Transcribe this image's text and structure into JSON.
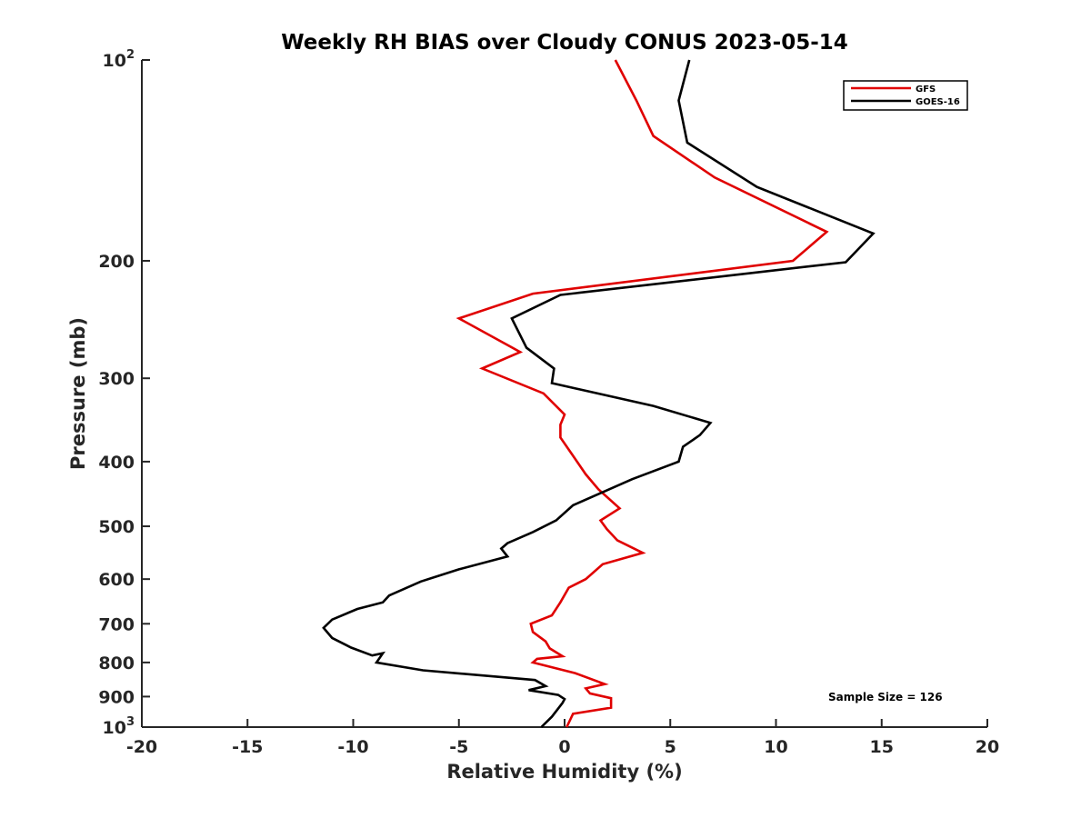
{
  "chart_data": {
    "type": "line",
    "title": "Weekly RH BIAS over Cloudy CONUS 2023-05-14",
    "xlabel": "Relative Humidity (%)",
    "ylabel": "Pressure (mb)",
    "xlim": [
      -20,
      20
    ],
    "ylim": [
      100,
      1000
    ],
    "y_scale": "log",
    "y_reversed": true,
    "grid": false,
    "legend_position": "top-right",
    "x_ticks": [
      {
        "value": -20,
        "label": "-20"
      },
      {
        "value": -15,
        "label": "-15"
      },
      {
        "value": -10,
        "label": "-10"
      },
      {
        "value": -5,
        "label": "-5"
      },
      {
        "value": 0,
        "label": "0"
      },
      {
        "value": 5,
        "label": "5"
      },
      {
        "value": 10,
        "label": "10"
      },
      {
        "value": 15,
        "label": "15"
      },
      {
        "value": 20,
        "label": "20"
      }
    ],
    "y_ticks": [
      {
        "value": 100,
        "label": "10",
        "sup": "2"
      },
      {
        "value": 200,
        "label": "200",
        "sup": ""
      },
      {
        "value": 300,
        "label": "300",
        "sup": ""
      },
      {
        "value": 400,
        "label": "400",
        "sup": ""
      },
      {
        "value": 500,
        "label": "500",
        "sup": ""
      },
      {
        "value": 600,
        "label": "600",
        "sup": ""
      },
      {
        "value": 700,
        "label": "700",
        "sup": ""
      },
      {
        "value": 800,
        "label": "800",
        "sup": ""
      },
      {
        "value": 900,
        "label": "900",
        "sup": ""
      },
      {
        "value": 1000,
        "label": "10",
        "sup": "3"
      }
    ],
    "series": [
      {
        "name": "GFS",
        "color": "#e00000",
        "x": [
          2.4,
          3.4,
          4.2,
          7.1,
          12.4,
          10.8,
          -1.5,
          -5.0,
          -2.1,
          -3.9,
          -1.0,
          0.0,
          -0.2,
          -0.2,
          0.4,
          1.0,
          1.6,
          2.6,
          1.7,
          2.0,
          2.5,
          3.7,
          1.8,
          1.0,
          0.2,
          -0.2,
          -0.6,
          -1.6,
          -1.5,
          -0.9,
          -0.7,
          -0.1,
          -1.3,
          -1.5,
          0.5,
          1.9,
          1.0,
          1.2,
          2.2,
          2.2,
          0.4,
          0.1
        ],
        "y": [
          100,
          115,
          130,
          150,
          181,
          200,
          224,
          244,
          274,
          290,
          316,
          340,
          352,
          368,
          392,
          418,
          440,
          470,
          490,
          505,
          525,
          548,
          570,
          600,
          618,
          650,
          680,
          700,
          720,
          744,
          762,
          783,
          790,
          800,
          830,
          862,
          875,
          890,
          905,
          935,
          955,
          1000
        ],
        "legend_label": "GFS"
      },
      {
        "name": "GOES-16",
        "color": "#000000",
        "x": [
          5.9,
          5.4,
          5.8,
          9.1,
          14.6,
          13.3,
          -0.2,
          -2.5,
          -1.8,
          -0.5,
          -0.6,
          4.2,
          6.9,
          6.4,
          5.6,
          5.4,
          3.2,
          0.4,
          -0.4,
          -1.5,
          -2.7,
          -3.0,
          -2.7,
          -5.0,
          -6.8,
          -8.3,
          -8.6,
          -9.8,
          -11.0,
          -11.4,
          -11.0,
          -10.1,
          -9.1,
          -8.6,
          -8.9,
          -6.7,
          -1.4,
          -0.9,
          -1.7,
          -0.3,
          0.0,
          -0.1,
          -0.6,
          -1.1
        ],
        "y": [
          100,
          115,
          133,
          155,
          182,
          201,
          225,
          244,
          270,
          290,
          305,
          330,
          350,
          365,
          380,
          400,
          425,
          465,
          490,
          510,
          530,
          540,
          555,
          580,
          605,
          635,
          650,
          665,
          690,
          710,
          735,
          760,
          781,
          775,
          800,
          822,
          850,
          868,
          880,
          895,
          908,
          920,
          965,
          1000
        ],
        "legend_label": "GOES-16"
      }
    ],
    "annotation": "Sample Size = 126"
  }
}
